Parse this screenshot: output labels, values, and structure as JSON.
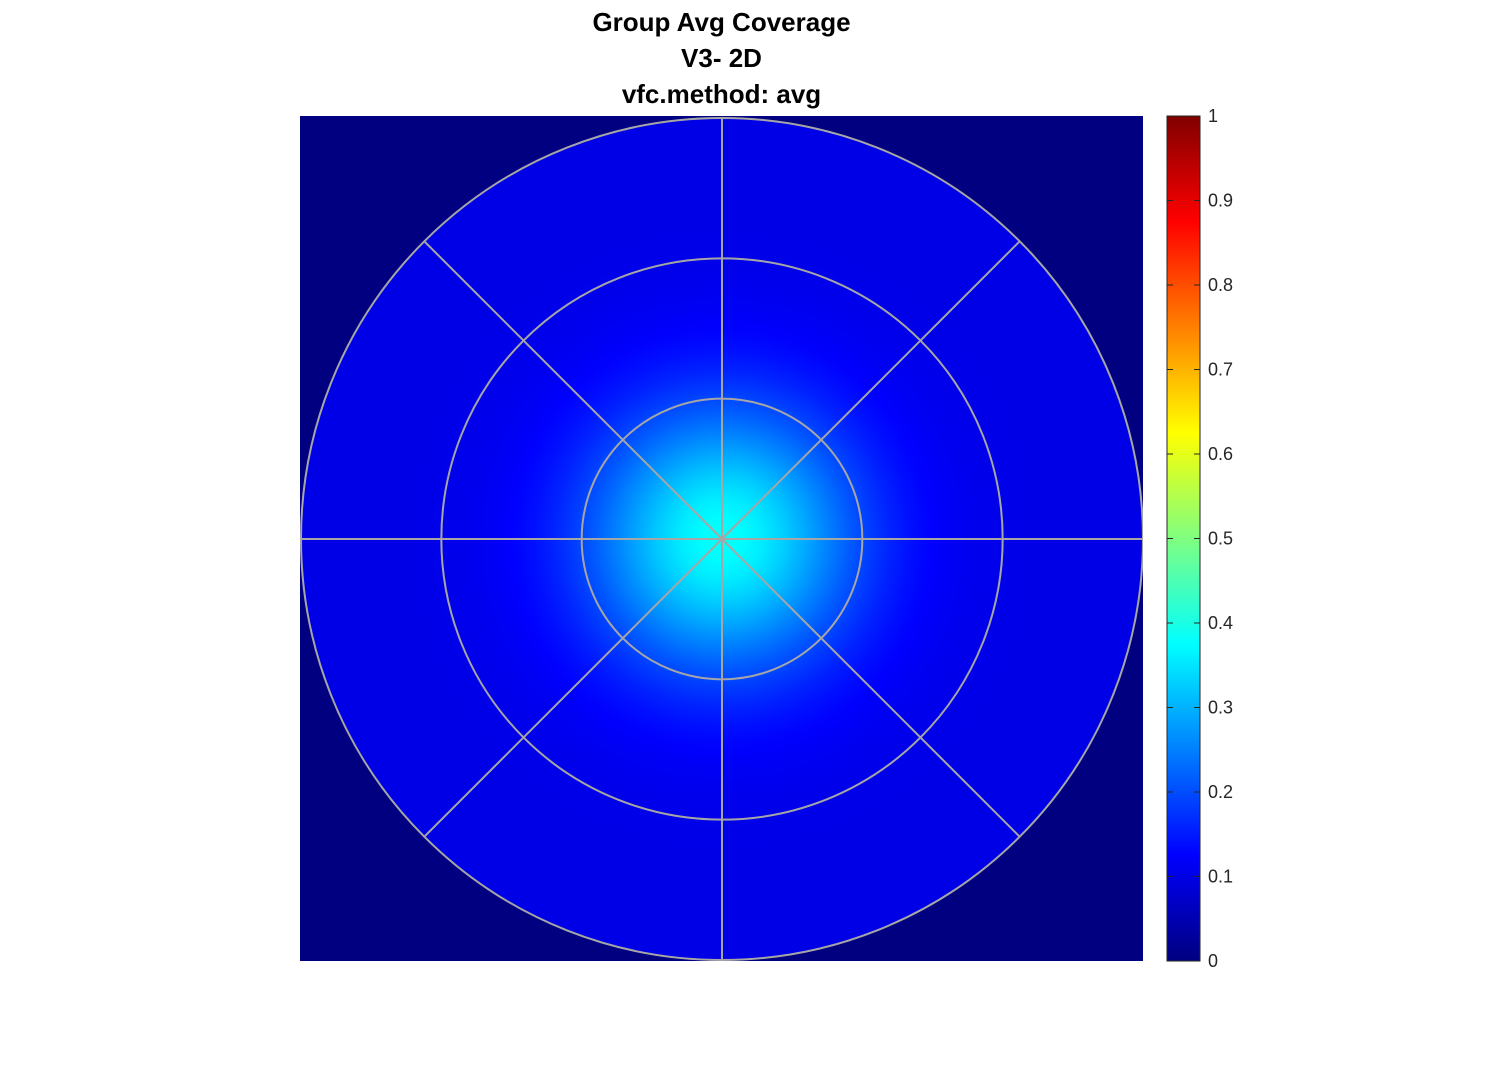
{
  "chart_data": {
    "type": "heatmap",
    "title": [
      "Group Avg Coverage",
      "V3- 2D",
      "vfc.method: avg"
    ],
    "xlabel": "",
    "ylabel": "",
    "grid": true,
    "polar_grid": {
      "rings": 3,
      "spokes": 8
    },
    "field": {
      "center_value": 0.38,
      "edge_value": 0.1,
      "outside_value": 0.0
    },
    "colorbar": {
      "colormap": "jet",
      "clim": [
        0,
        1
      ],
      "ticks": [
        0,
        0.1,
        0.2,
        0.3,
        0.4,
        0.5,
        0.6,
        0.7,
        0.8,
        0.9,
        1
      ],
      "tick_labels": [
        "0",
        "0.1",
        "0.2",
        "0.3",
        "0.4",
        "0.5",
        "0.6",
        "0.7",
        "0.8",
        "0.9",
        "1"
      ],
      "location": "right"
    },
    "colors": {
      "background_outside": "#00007f",
      "grid_lines": "#a6a6a6"
    }
  }
}
